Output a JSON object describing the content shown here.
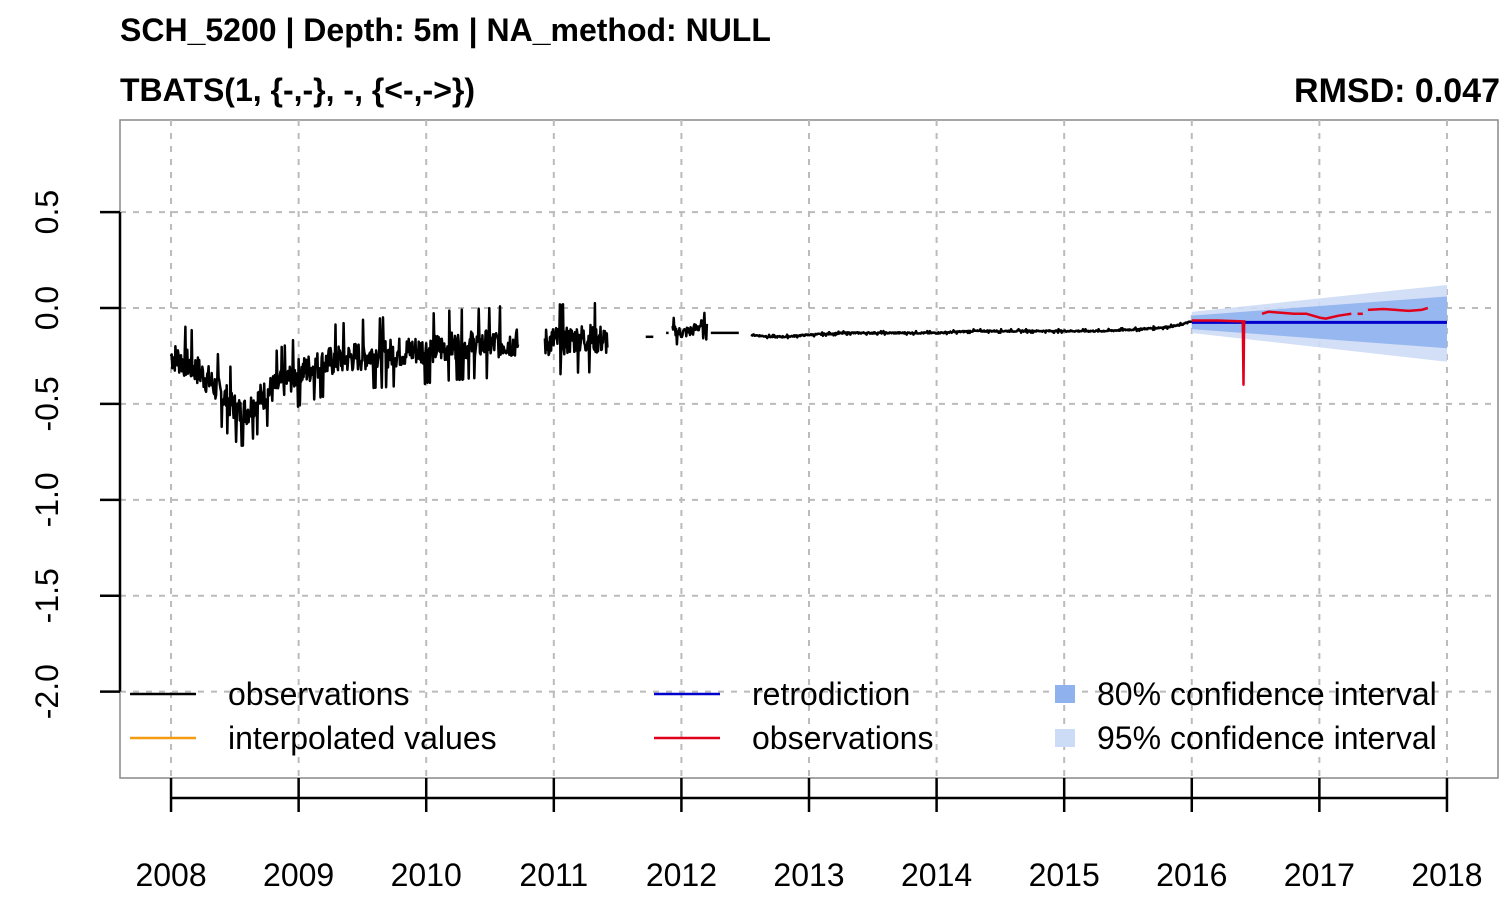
{
  "title": "SCH_5200 | Depth: 5m | NA_method: NULL",
  "subtitle": "TBATS(1, {-,-}, -, {<-,->})",
  "rmsd_label": "RMSD: 0.047",
  "colors": {
    "observations": "#000000",
    "interpolated": "#f39c12",
    "retrodiction": "#0000cc",
    "validation": "#e0001a",
    "ci80": "#8fb2ee",
    "ci95": "#cddcf6",
    "grid": "#bbbbbb"
  },
  "chart_data": {
    "type": "line",
    "title": "SCH_5200 | Depth: 5m | NA_method: NULL",
    "subtitle": "TBATS(1, {-,-}, -, {<-,->})",
    "annotation": "RMSD: 0.047",
    "xlabel": "",
    "ylabel": "",
    "xlim": [
      2007.6,
      2018.4
    ],
    "ylim": [
      -2.45,
      0.98
    ],
    "x_ticks": [
      2008,
      2009,
      2010,
      2011,
      2012,
      2013,
      2014,
      2015,
      2016,
      2017,
      2018
    ],
    "x_tick_labels": [
      "2008",
      "2009",
      "2010",
      "2011",
      "2012",
      "2013",
      "2014",
      "2015",
      "2016",
      "2017",
      "2018"
    ],
    "y_ticks": [
      -2.0,
      -1.5,
      -1.0,
      -0.5,
      0.0,
      0.5
    ],
    "y_tick_labels": [
      "-2.0",
      "-1.5",
      "-1.0",
      "-0.5",
      "0.0",
      "0.5"
    ],
    "grid": true,
    "legend_position": "bottom",
    "legend": [
      {
        "label": "observations",
        "kind": "line",
        "color": "#000000"
      },
      {
        "label": "interpolated values",
        "kind": "line",
        "color": "#f39c12"
      },
      {
        "label": "retrodiction",
        "kind": "line",
        "color": "#0000cc"
      },
      {
        "label": "observations",
        "kind": "line",
        "color": "#e0001a"
      },
      {
        "label": "80% confidence interval",
        "kind": "box",
        "color": "#8fb2ee"
      },
      {
        "label": "95% confidence interval",
        "kind": "box",
        "color": "#cddcf6"
      }
    ],
    "series": [
      {
        "name": "observations",
        "color": "#000000",
        "segments": [
          {
            "x": [
              2008.0,
              2008.1,
              2008.2,
              2008.3,
              2008.4,
              2008.5,
              2008.55,
              2008.6,
              2008.7,
              2008.8,
              2008.9,
              2009.0,
              2009.1,
              2009.2,
              2009.3,
              2009.4,
              2009.5,
              2009.6,
              2009.7,
              2009.8,
              2009.9,
              2010.0,
              2010.1,
              2010.2,
              2010.3,
              2010.4,
              2010.5,
              2010.6,
              2010.7,
              2010.72
            ],
            "y": [
              -0.25,
              -0.28,
              -0.32,
              -0.38,
              -0.45,
              -0.52,
              -0.55,
              -0.53,
              -0.47,
              -0.42,
              -0.38,
              -0.34,
              -0.31,
              -0.29,
              -0.27,
              -0.26,
              -0.25,
              -0.24,
              -0.24,
              -0.23,
              -0.22,
              -0.22,
              -0.21,
              -0.2,
              -0.2,
              -0.19,
              -0.19,
              -0.18,
              -0.18,
              -0.19
            ],
            "noise": 0.08
          },
          {
            "x": [
              2010.93,
              2011.0,
              2011.1,
              2011.2,
              2011.3,
              2011.42
            ],
            "y": [
              -0.18,
              -0.17,
              -0.17,
              -0.16,
              -0.16,
              -0.17
            ],
            "noise": 0.08
          },
          {
            "x": [
              2011.72,
              2011.78
            ],
            "y": [
              -0.15,
              -0.15
            ],
            "noise": 0.0
          },
          {
            "x": [
              2011.88,
              2011.9
            ],
            "y": [
              -0.13,
              -0.13
            ],
            "noise": 0.0
          },
          {
            "x": [
              2011.93,
              2012.0,
              2012.08,
              2012.15,
              2012.2
            ],
            "y": [
              -0.12,
              -0.13,
              -0.12,
              -0.09,
              -0.1
            ],
            "noise": 0.03
          },
          {
            "x": [
              2012.23,
              2012.45
            ],
            "y": [
              -0.13,
              -0.13
            ],
            "noise": 0.0
          },
          {
            "x": [
              2012.55,
              2012.7,
              2012.8,
              2013.0,
              2013.3,
              2013.6,
              2014.0,
              2014.3,
              2014.6,
              2015.0,
              2015.3,
              2015.6,
              2015.8,
              2015.9,
              2016.0
            ],
            "y": [
              -0.14,
              -0.15,
              -0.15,
              -0.14,
              -0.13,
              -0.13,
              -0.13,
              -0.12,
              -0.12,
              -0.12,
              -0.12,
              -0.11,
              -0.1,
              -0.09,
              -0.07
            ],
            "noise": 0.004
          }
        ]
      },
      {
        "name": "retrodiction",
        "color": "#0000cc",
        "x": [
          2016.0,
          2018.0
        ],
        "y": [
          -0.075,
          -0.075
        ]
      },
      {
        "name": "observations",
        "color": "#e0001a",
        "segments": [
          {
            "x": [
              2016.0,
              2016.2,
              2016.4,
              2016.405,
              2016.41,
              2016.415,
              2016.42
            ],
            "y": [
              -0.065,
              -0.065,
              -0.07,
              -0.4,
              -0.07,
              -0.07,
              -0.07
            ]
          },
          {
            "x": [
              2016.55,
              2016.6,
              2016.7,
              2016.8,
              2016.9,
              2017.0,
              2017.05,
              2017.15,
              2017.2,
              2017.25
            ],
            "y": [
              -0.03,
              -0.02,
              -0.025,
              -0.03,
              -0.03,
              -0.05,
              -0.055,
              -0.04,
              -0.035,
              -0.03
            ]
          },
          {
            "x": [
              2017.3,
              2017.34
            ],
            "y": [
              -0.03,
              -0.03
            ]
          },
          {
            "x": [
              2017.38,
              2017.5,
              2017.6,
              2017.7,
              2017.8,
              2017.85
            ],
            "y": [
              -0.01,
              -0.005,
              -0.01,
              -0.015,
              -0.01,
              0.0
            ]
          }
        ]
      }
    ],
    "confidence_intervals": {
      "x": [
        2016.0,
        2018.0
      ],
      "ci80_upper": [
        -0.04,
        0.06
      ],
      "ci80_lower": [
        -0.11,
        -0.21
      ],
      "ci95_upper": [
        -0.02,
        0.12
      ],
      "ci95_lower": [
        -0.13,
        -0.28
      ]
    }
  }
}
